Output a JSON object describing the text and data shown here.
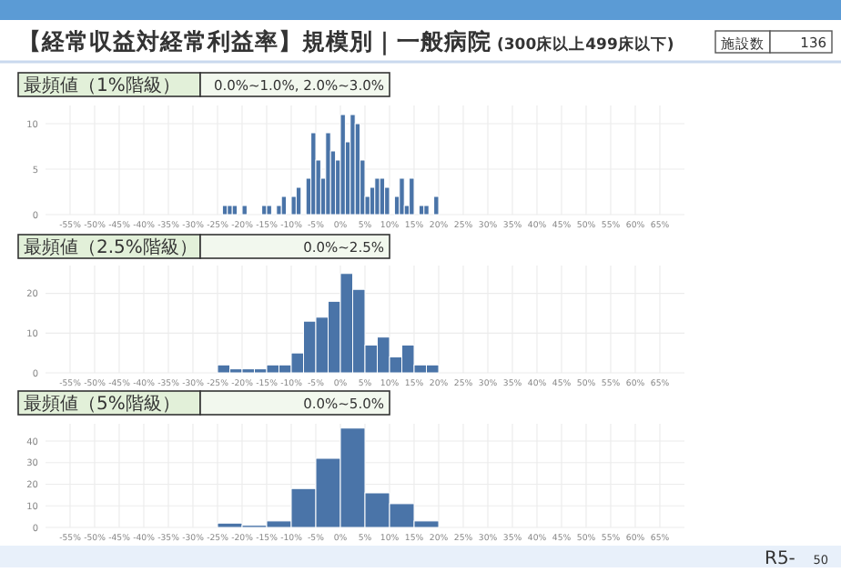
{
  "chart_data": [
    {
      "type": "histogram",
      "title": "【経常収益対経常利益率】規模別｜一般病院",
      "subtitle": "(300床以上499床以下)",
      "annotations": [
        "施設数",
        "136",
        "最頻値（1%階級）",
        "0.0%~1.0%, 2.0%~3.0%"
      ],
      "color": "#4a74a8",
      "grid": true,
      "bins": [
        -24,
        -23,
        -22,
        -21,
        -20,
        -19,
        -18,
        -17,
        -16,
        -15,
        -14,
        -13,
        -12,
        -11,
        -10,
        -9,
        -8,
        -7,
        -6,
        -5,
        -4,
        -3,
        -2,
        -1,
        0,
        1,
        2,
        3,
        4,
        5,
        6,
        7,
        8,
        9,
        10,
        11,
        12,
        13,
        14,
        15,
        16,
        17,
        18,
        19,
        20
      ],
      "values": [
        1,
        1,
        1,
        0,
        1,
        0,
        0,
        0,
        1,
        1,
        0,
        1,
        2,
        0,
        2,
        3,
        0,
        4,
        9,
        6,
        4,
        9,
        7,
        6,
        11,
        8,
        11,
        10,
        6,
        2,
        3,
        4,
        4,
        3,
        0,
        2,
        4,
        1,
        4,
        0,
        1,
        1,
        0,
        2
      ],
      "xlim": [
        -60,
        70
      ],
      "ylim": [
        0,
        12
      ],
      "yticks": [
        0,
        5,
        10
      ],
      "xticks": [
        {
          "value": -55,
          "label": "-55%"
        },
        {
          "value": -50,
          "label": "-50%"
        },
        {
          "value": -45,
          "label": "-45%"
        },
        {
          "value": -40,
          "label": "-40%"
        },
        {
          "value": -35,
          "label": "-35%"
        },
        {
          "value": -30,
          "label": "-30%"
        },
        {
          "value": -25,
          "label": "-25%"
        },
        {
          "value": -20,
          "label": "-20%"
        },
        {
          "value": -15,
          "label": "-15%"
        },
        {
          "value": -10,
          "label": "-10%"
        },
        {
          "value": -5,
          "label": "-5%"
        },
        {
          "value": 0,
          "label": "0%"
        },
        {
          "value": 5,
          "label": "5%"
        },
        {
          "value": 10,
          "label": "10%"
        },
        {
          "value": 15,
          "label": "15%"
        },
        {
          "value": 20,
          "label": "20%"
        },
        {
          "value": 25,
          "label": "25%"
        },
        {
          "value": 30,
          "label": "30%"
        },
        {
          "value": 35,
          "label": "35%"
        },
        {
          "value": 40,
          "label": "40%"
        },
        {
          "value": 45,
          "label": "45%"
        },
        {
          "value": 50,
          "label": "50%"
        },
        {
          "value": 55,
          "label": "55%"
        },
        {
          "value": 60,
          "label": "60%"
        },
        {
          "value": 65,
          "label": "65%"
        }
      ]
    },
    {
      "type": "histogram",
      "annotations": [
        "最頻値（2.5%階級）",
        "0.0%~2.5%"
      ],
      "color": "#4a74a8",
      "grid": true,
      "bins": [
        -25,
        -22.5,
        -20,
        -17.5,
        -15,
        -12.5,
        -10,
        -7.5,
        -5,
        -2.5,
        0,
        2.5,
        5,
        7.5,
        10,
        12.5,
        15,
        17.5,
        20
      ],
      "values": [
        2,
        1,
        1,
        1,
        2,
        2,
        5,
        13,
        14,
        18,
        25,
        21,
        7,
        9,
        4,
        7,
        2,
        2
      ],
      "xlim": [
        -60,
        70
      ],
      "ylim": [
        0,
        27
      ],
      "yticks": [
        0,
        10,
        20
      ],
      "xticks": [
        {
          "value": -55,
          "label": "-55%"
        },
        {
          "value": -50,
          "label": "-50%"
        },
        {
          "value": -45,
          "label": "-45%"
        },
        {
          "value": -40,
          "label": "-40%"
        },
        {
          "value": -35,
          "label": "-35%"
        },
        {
          "value": -30,
          "label": "-30%"
        },
        {
          "value": -25,
          "label": "-25%"
        },
        {
          "value": -20,
          "label": "-20%"
        },
        {
          "value": -15,
          "label": "-15%"
        },
        {
          "value": -10,
          "label": "-10%"
        },
        {
          "value": -5,
          "label": "-5%"
        },
        {
          "value": 0,
          "label": "0%"
        },
        {
          "value": 5,
          "label": "5%"
        },
        {
          "value": 10,
          "label": "10%"
        },
        {
          "value": 15,
          "label": "15%"
        },
        {
          "value": 20,
          "label": "20%"
        },
        {
          "value": 25,
          "label": "25%"
        },
        {
          "value": 30,
          "label": "30%"
        },
        {
          "value": 35,
          "label": "35%"
        },
        {
          "value": 40,
          "label": "40%"
        },
        {
          "value": 45,
          "label": "45%"
        },
        {
          "value": 50,
          "label": "50%"
        },
        {
          "value": 55,
          "label": "55%"
        },
        {
          "value": 60,
          "label": "60%"
        },
        {
          "value": 65,
          "label": "65%"
        }
      ]
    },
    {
      "type": "histogram",
      "annotations": [
        "最頻値（5%階級）",
        "0.0%~5.0%",
        "R5-",
        "50"
      ],
      "color": "#4a74a8",
      "grid": true,
      "bins": [
        -25,
        -20,
        -15,
        -10,
        -5,
        0,
        5,
        10,
        15,
        20
      ],
      "values": [
        2,
        1,
        3,
        18,
        32,
        46,
        16,
        11,
        3
      ],
      "xlim": [
        -60,
        70
      ],
      "ylim": [
        0,
        48
      ],
      "yticks": [
        0,
        10,
        20,
        30,
        40
      ],
      "xticks": [
        {
          "value": -55,
          "label": "-55%"
        },
        {
          "value": -50,
          "label": "-50%"
        },
        {
          "value": -45,
          "label": "-45%"
        },
        {
          "value": -40,
          "label": "-40%"
        },
        {
          "value": -35,
          "label": "-35%"
        },
        {
          "value": -30,
          "label": "-30%"
        },
        {
          "value": -25,
          "label": "-25%"
        },
        {
          "value": -20,
          "label": "-20%"
        },
        {
          "value": -15,
          "label": "-15%"
        },
        {
          "value": -10,
          "label": "-10%"
        },
        {
          "value": -5,
          "label": "-5%"
        },
        {
          "value": 0,
          "label": "0%"
        },
        {
          "value": 5,
          "label": "5%"
        },
        {
          "value": 10,
          "label": "10%"
        },
        {
          "value": 15,
          "label": "15%"
        },
        {
          "value": 20,
          "label": "20%"
        },
        {
          "value": 25,
          "label": "25%"
        },
        {
          "value": 30,
          "label": "30%"
        },
        {
          "value": 35,
          "label": "35%"
        },
        {
          "value": 40,
          "label": "40%"
        },
        {
          "value": 45,
          "label": "45%"
        },
        {
          "value": 50,
          "label": "50%"
        },
        {
          "value": 55,
          "label": "55%"
        },
        {
          "value": 60,
          "label": "60%"
        },
        {
          "value": 65,
          "label": "65%"
        }
      ]
    }
  ]
}
